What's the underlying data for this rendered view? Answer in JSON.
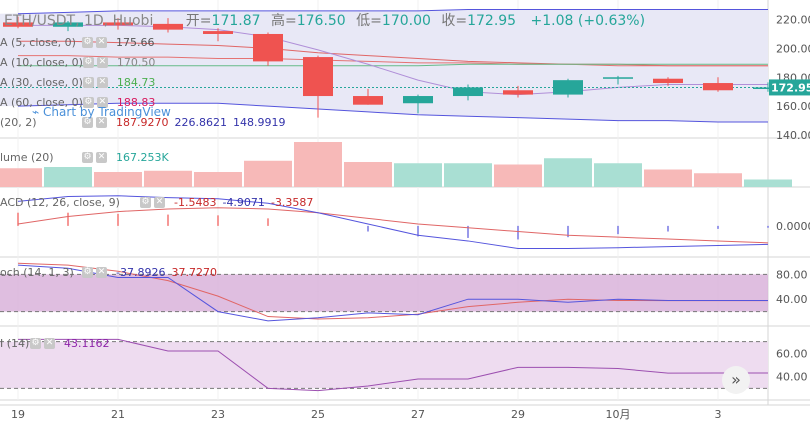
{
  "header": {
    "symbol": "ETH/USDT, 1D, Huobi",
    "open_label": "开=",
    "open": "171.87",
    "high_label": "高=",
    "high": "176.50",
    "low_label": "低=",
    "low": "170.00",
    "close_label": "收=",
    "close": "172.95",
    "change": "+1.08 (+0.63%)"
  },
  "watermark": "Chart by TradingView",
  "nav_button": "»",
  "legends": {
    "ma5": {
      "label": "A (5, close, 0)",
      "value": "175.66"
    },
    "ma10": {
      "label": "A (10, close, 0)",
      "value": "170.50"
    },
    "ma30": {
      "label": "A (30, close, 0)",
      "value": "184.73"
    },
    "ma60": {
      "label": "A (60, close, 0)",
      "value": "188.83"
    },
    "boll": {
      "label": "(20, 2)",
      "v1": "187.9270",
      "v2": "226.8621",
      "v3": "148.9919"
    },
    "volume": {
      "label": "lume (20)",
      "value": "167.253K"
    },
    "macd": {
      "label": "ACD (12, 26, close, 9)",
      "v1": "-1.5483",
      "v2": "-4.9071",
      "v3": "-3.3587"
    },
    "stoch": {
      "label": "och (14, 1, 3)",
      "v1": "-37.8926",
      "v2": "37.7270"
    },
    "rsi": {
      "label": "I (14)",
      "value": "43.1162"
    }
  },
  "colors": {
    "up": "#26a69a",
    "down": "#ef5350",
    "vol_up": "#a9dfd3",
    "vol_down": "#f7b9b8",
    "boll": "#5555dd",
    "ma": "#e06666",
    "ma_alt": "#b08fd8",
    "ma_green": "#66bb88",
    "stoch_fill": "#d9b3db",
    "rsi_fill": "#eedcf0"
  },
  "chart_data": [
    {
      "type": "candlestick",
      "title": "ETH/USDT, 1D, Huobi",
      "price_axis_ticks": [
        "220.00",
        "200.00",
        "180.00",
        "160.00",
        "140.00"
      ],
      "last_price": "172.95",
      "ylim": [
        140,
        228
      ],
      "x_labels": [
        "19",
        "21",
        "23",
        "25",
        "27",
        "29",
        "10月",
        "3"
      ],
      "candles": [
        {
          "d": "19",
          "o": 218,
          "h": 222,
          "l": 214,
          "c": 215
        },
        {
          "d": "20",
          "o": 215,
          "h": 219,
          "l": 212,
          "c": 218
        },
        {
          "d": "21",
          "o": 218,
          "h": 221,
          "l": 213,
          "c": 216
        },
        {
          "d": "22",
          "o": 217,
          "h": 221,
          "l": 211,
          "c": 213
        },
        {
          "d": "23",
          "o": 212,
          "h": 214,
          "l": 205,
          "c": 210
        },
        {
          "d": "24",
          "o": 210,
          "h": 211,
          "l": 188,
          "c": 191
        },
        {
          "d": "25",
          "o": 194,
          "h": 195,
          "l": 152,
          "c": 167
        },
        {
          "d": "26",
          "o": 167,
          "h": 172,
          "l": 161,
          "c": 161
        },
        {
          "d": "27",
          "o": 162,
          "h": 168,
          "l": 155,
          "c": 167
        },
        {
          "d": "28",
          "o": 167,
          "h": 175,
          "l": 164,
          "c": 173
        },
        {
          "d": "29",
          "o": 171,
          "h": 174,
          "l": 166,
          "c": 168
        },
        {
          "d": "30",
          "o": 168,
          "h": 179,
          "l": 166,
          "c": 178
        },
        {
          "d": "10月",
          "o": 180,
          "h": 181,
          "l": 175,
          "c": 180
        },
        {
          "d": "2",
          "o": 179,
          "h": 180,
          "l": 174,
          "c": 176
        },
        {
          "d": "3",
          "o": 176,
          "h": 180,
          "l": 170,
          "c": 171
        },
        {
          "d": "4",
          "o": 171.87,
          "h": 176.5,
          "l": 170,
          "c": 172.95
        }
      ],
      "boll_upper": [
        224,
        225,
        226,
        226,
        226,
        226,
        226,
        226,
        226,
        227,
        227,
        227,
        227,
        227,
        227,
        227
      ],
      "boll_mid": [
        205,
        205,
        204,
        203,
        202,
        200,
        197,
        195,
        193,
        191,
        190,
        189,
        189,
        188,
        188,
        188
      ],
      "boll_lower": [
        160,
        161,
        162,
        162,
        162,
        160,
        158,
        156,
        154,
        153,
        152,
        151,
        150,
        150,
        149,
        149
      ],
      "ma30": [
        188,
        188,
        188,
        188,
        188,
        188,
        188,
        188,
        188,
        189,
        189,
        189,
        189,
        189,
        189,
        189
      ],
      "ma60": [
        195,
        195,
        194,
        194,
        193,
        193,
        192,
        191,
        190,
        190,
        189,
        189,
        188,
        188,
        188,
        188
      ],
      "ma5": [
        216,
        216,
        216,
        215,
        213,
        208,
        199,
        189,
        178,
        170,
        168,
        170,
        173,
        175,
        175,
        175
      ]
    },
    {
      "type": "bar",
      "title": "Volume (20)",
      "last_value": "167.253K",
      "values": [
        150,
        160,
        120,
        130,
        120,
        210,
        360,
        200,
        190,
        190,
        180,
        230,
        190,
        140,
        110,
        60
      ],
      "direction": [
        "down",
        "up",
        "down",
        "down",
        "down",
        "down",
        "down",
        "down",
        "up",
        "up",
        "down",
        "up",
        "up",
        "down",
        "down",
        "up"
      ]
    },
    {
      "type": "line",
      "title": "MACD (12, 26, close, 9)",
      "y_tick": "0.0000",
      "ylim": [
        -8,
        9
      ],
      "histogram": [
        3.5,
        3.5,
        3.2,
        3.0,
        2.8,
        2.0,
        0,
        -1.5,
        -2.8,
        -3.2,
        -3.6,
        -3.0,
        -2.2,
        -1.5,
        -0.8,
        -0.5
      ],
      "macd": [
        6.5,
        7.8,
        8.0,
        7.5,
        7.2,
        6.0,
        3.5,
        0.5,
        -2.5,
        -4.0,
        -6.0,
        -6.0,
        -5.8,
        -5.5,
        -5.2,
        -4.9
      ],
      "signal": [
        0.5,
        2.5,
        3.8,
        4.5,
        4.8,
        4.5,
        3.5,
        2.0,
        0.5,
        -0.5,
        -1.5,
        -2.5,
        -3.0,
        -3.5,
        -4.0,
        -4.5
      ]
    },
    {
      "type": "line",
      "title": "Stoch (14, 1, 3)",
      "y_ticks": [
        "80.00",
        "40.00"
      ],
      "ylim": [
        0,
        100
      ],
      "k": [
        95,
        90,
        75,
        75,
        20,
        5,
        10,
        18,
        15,
        40,
        40,
        35,
        40,
        37.9,
        37.9,
        37.9
      ],
      "d": [
        98,
        95,
        85,
        70,
        45,
        12,
        8,
        10,
        16,
        28,
        35,
        40,
        38,
        37.7,
        37.7,
        37.7
      ]
    },
    {
      "type": "line",
      "title": "RSI (14)",
      "y_ticks": [
        "60.00",
        "40.00"
      ],
      "ylim": [
        20,
        80
      ],
      "rsi": [
        72,
        72,
        72,
        62,
        62,
        30,
        28,
        32,
        38,
        38,
        48,
        48,
        47,
        43,
        43.1,
        43.1
      ]
    }
  ]
}
